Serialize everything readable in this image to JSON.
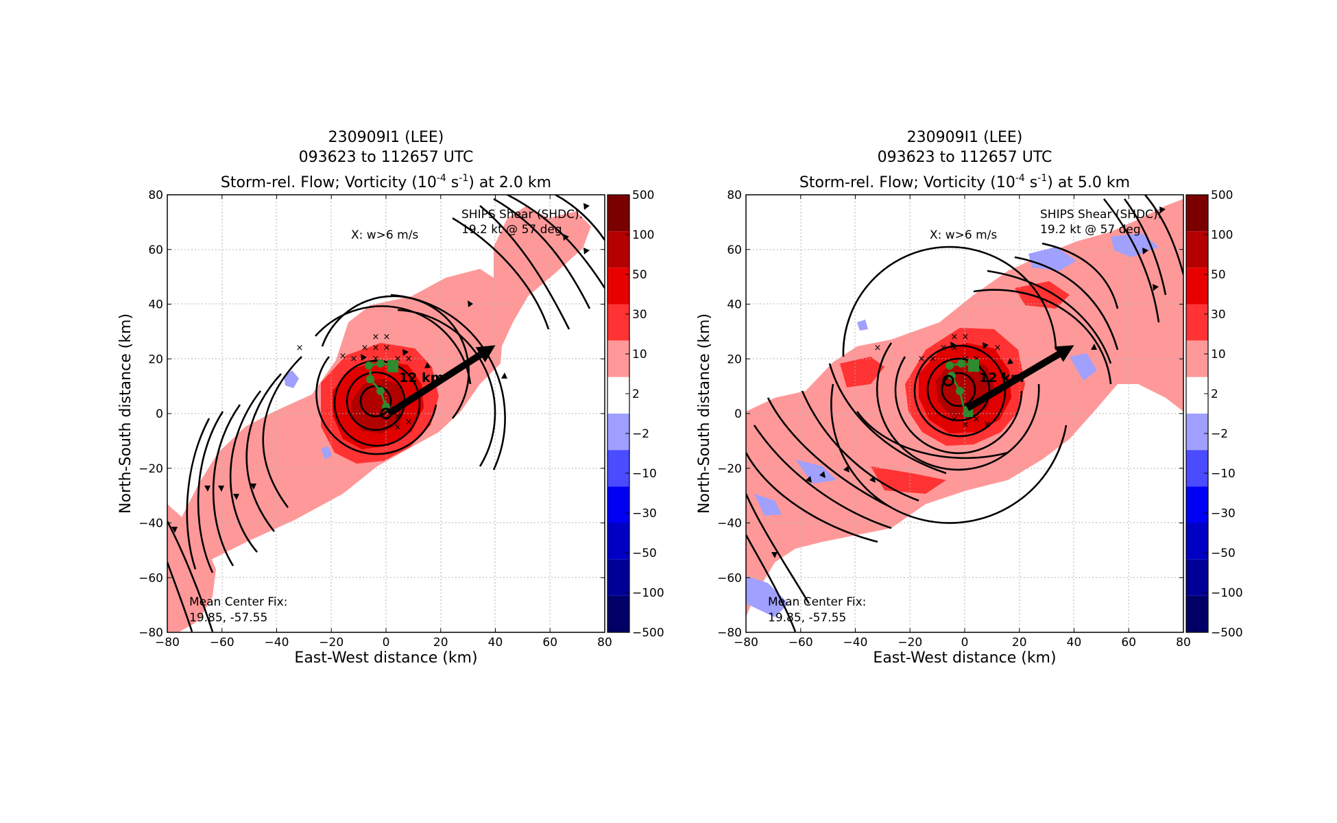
{
  "chart_data": [
    {
      "type": "heatmap",
      "title_lines": [
        "230909I1 (LEE)",
        "093623 to 112657 UTC"
      ],
      "title_main_prefix": "Storm-rel. Flow; Vorticity (10",
      "title_exp1": "-4",
      "title_mid": " s",
      "title_exp2": "-1",
      "title_suffix": ") at 2.0 km",
      "xlabel": "East-West distance (km)",
      "ylabel": "North-South distance (km)",
      "xlim": [
        -80,
        80
      ],
      "ylim": [
        -80,
        80
      ],
      "xticks": [
        -80,
        -60,
        -40,
        -20,
        0,
        20,
        40,
        60,
        80
      ],
      "yticks": [
        -80,
        -60,
        -40,
        -20,
        0,
        20,
        40,
        60,
        80
      ],
      "grid": true,
      "annotation_updraft": "X: w>6 m/s",
      "shear_line1": "SHIPS Shear (SHDC):",
      "shear_line2": "19.2 kt @ 57 deg",
      "center_line1": "Mean Center Fix:",
      "center_line2": "19.85, -57.55",
      "tilt_label": "12 km",
      "shear_arrow": {
        "x0": 1,
        "y0": 0,
        "x1": 40,
        "y1": 25
      },
      "center_fix": [
        0,
        0
      ],
      "colorbar_levels": [
        "500",
        "100",
        "50",
        "30",
        "10",
        "2",
        "−2",
        "−10",
        "−30",
        "−50",
        "−100",
        "−500"
      ]
    },
    {
      "type": "heatmap",
      "title_lines": [
        "230909I1 (LEE)",
        "093623 to 112657 UTC"
      ],
      "title_main_prefix": "Storm-rel. Flow; Vorticity (10",
      "title_exp1": "-4",
      "title_mid": " s",
      "title_exp2": "-1",
      "title_suffix": ") at 5.0 km",
      "xlabel": "East-West distance (km)",
      "ylabel": "North-South distance (km)",
      "xlim": [
        -80,
        80
      ],
      "ylim": [
        -80,
        80
      ],
      "xticks": [
        -80,
        -60,
        -40,
        -20,
        0,
        20,
        40,
        60,
        80
      ],
      "yticks": [
        -80,
        -60,
        -40,
        -20,
        0,
        20,
        40,
        60,
        80
      ],
      "grid": true,
      "annotation_updraft": "X: w>6 m/s",
      "shear_line1": "SHIPS Shear (SHDC):",
      "shear_line2": "19.2 kt @ 57 deg",
      "center_line1": "Mean Center Fix:",
      "center_line2": "19.85, -57.55",
      "tilt_label": "12 km",
      "shear_arrow": {
        "x0": 1,
        "y0": 2,
        "x1": 40,
        "y1": 25
      },
      "center_fix": [
        -6,
        12
      ],
      "colorbar_levels": [
        "500",
        "100",
        "50",
        "30",
        "10",
        "2",
        "−2",
        "−10",
        "−30",
        "−50",
        "−100",
        "−500"
      ]
    }
  ],
  "colors": {
    "colorbar": [
      "#7a0000",
      "#b40000",
      "#e80000",
      "#ff3333",
      "#ff9999",
      "#ffffff",
      "#9f9fff",
      "#4b4bff",
      "#0000f2",
      "#0000c4",
      "#000096",
      "#000066"
    ],
    "vort_light": "#ff9999",
    "vort_mid": "#ff3333",
    "vort_strong": "#e00000",
    "vort_core": "#b00000",
    "vort_neg": "#a0a0ff",
    "center_marker": "#2e8b2e"
  }
}
